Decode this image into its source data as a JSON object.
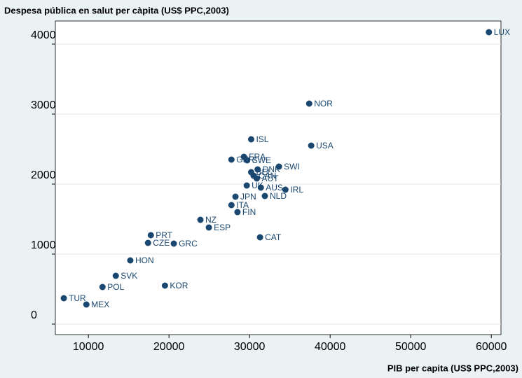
{
  "chart_data": {
    "type": "scatter",
    "title": "Despesa pública en salut per càpita (US$ PPC,2003)",
    "x_label": "PIB per capita (US$ PPC,2003)",
    "color": "#1a476f",
    "labels": [
      "LUX",
      "NOR",
      "USA",
      "ISL",
      "FRA",
      "GER",
      "SWE",
      "SWI",
      "DNK",
      "BEL",
      "CAN",
      "AUT",
      "UK",
      "AUS",
      "IRL",
      "JPN",
      "NLD",
      "ITA",
      "FIN",
      "NZ",
      "ESP",
      "CAT",
      "PRT",
      "CZE",
      "GRC",
      "HON",
      "SVK",
      "POL",
      "KOR",
      "TUR",
      "MEX"
    ],
    "x": [
      59700,
      37400,
      37650,
      30200,
      29300,
      27750,
      29700,
      33650,
      31000,
      30200,
      30500,
      30900,
      29650,
      31400,
      34450,
      28250,
      31900,
      27750,
      28500,
      23900,
      24950,
      31300,
      17750,
      17400,
      20600,
      15200,
      13400,
      11750,
      19500,
      6950,
      9750
    ],
    "values": [
      4170,
      3150,
      2550,
      2640,
      2390,
      2350,
      2340,
      2250,
      2210,
      2170,
      2120,
      2080,
      1980,
      1950,
      1920,
      1820,
      1830,
      1700,
      1600,
      1490,
      1380,
      1240,
      1270,
      1160,
      1150,
      910,
      690,
      530,
      550,
      370,
      280
    ],
    "xlim": [
      5900,
      61200
    ],
    "ylim": [
      -150,
      4330
    ],
    "xticks": [
      10000,
      20000,
      30000,
      40000,
      50000,
      60000
    ],
    "yticks": [
      0,
      1000,
      2000,
      3000,
      4000
    ]
  }
}
